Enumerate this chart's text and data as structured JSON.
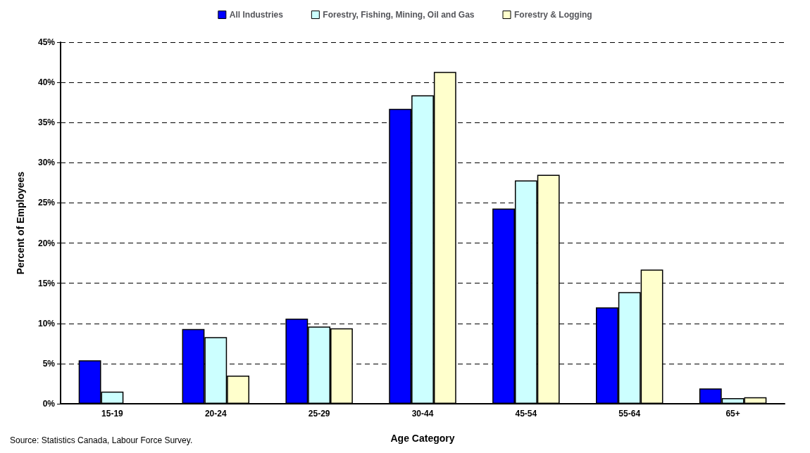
{
  "chart_data": {
    "type": "bar",
    "xlabel": "Age Category",
    "ylabel": "Percent of Employees",
    "categories": [
      "15-19",
      "20-24",
      "25-29",
      "30-44",
      "45-54",
      "55-64",
      "65+"
    ],
    "series": [
      {
        "name": "All Industries",
        "color": "#0000ff",
        "values": [
          5.4,
          9.3,
          10.6,
          36.7,
          24.3,
          12.0,
          1.9
        ]
      },
      {
        "name": "Forestry, Fishing, Mining, Oil and Gas",
        "color": "#ccffff",
        "values": [
          1.5,
          8.3,
          9.6,
          38.4,
          27.8,
          13.9,
          0.7
        ]
      },
      {
        "name": "Forestry & Logging",
        "color": "#ffffcc",
        "values": [
          null,
          3.5,
          9.4,
          41.3,
          28.5,
          16.7,
          0.8
        ]
      }
    ],
    "ylim": [
      0,
      45
    ],
    "yticks": [
      {
        "value": 0,
        "label": "0%"
      },
      {
        "value": 5,
        "label": "5%"
      },
      {
        "value": 10,
        "label": "10%"
      },
      {
        "value": 15,
        "label": "15%"
      },
      {
        "value": 20,
        "label": "20%"
      },
      {
        "value": 25,
        "label": "25%"
      },
      {
        "value": 30,
        "label": "30%"
      },
      {
        "value": 35,
        "label": "35%"
      },
      {
        "value": 40,
        "label": "40%"
      },
      {
        "value": 45,
        "label": "45%"
      }
    ],
    "grid": "y",
    "legend": "top",
    "annotations": [
      "Source: Statistics Canada, Labour Force Survey."
    ]
  }
}
